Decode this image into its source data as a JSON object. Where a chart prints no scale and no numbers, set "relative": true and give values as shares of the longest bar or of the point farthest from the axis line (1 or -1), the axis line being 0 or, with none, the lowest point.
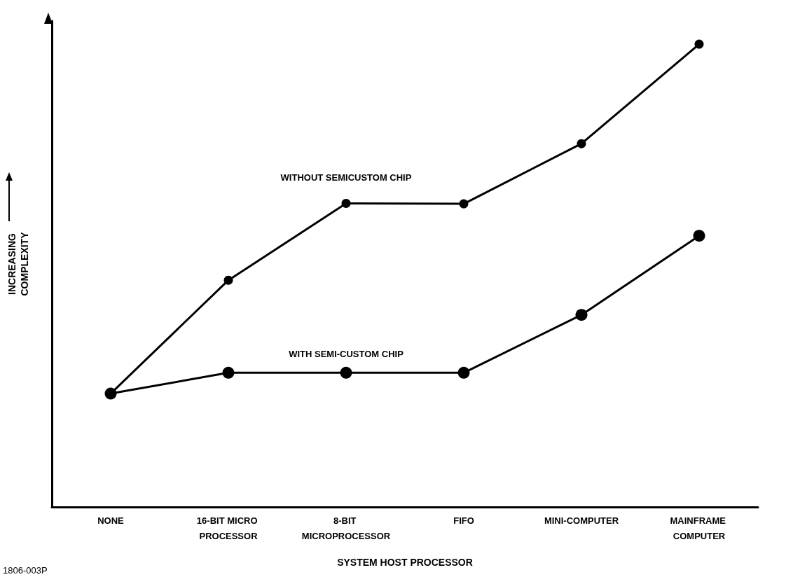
{
  "chart_data": {
    "type": "line",
    "relative": true,
    "xlabel": "SYSTEM HOST PROCESSOR",
    "ylabel": "INCREASING COMPLEXITY",
    "categories": [
      "NONE",
      "16-BIT MICRO PROCESSOR",
      "8-BIT MICROPROCESSOR",
      "FIFO",
      "MINI-COMPUTER",
      "MAINFRAME COMPUTER"
    ],
    "series": [
      {
        "name": "WITHOUT SEMICUSTOM CHIP",
        "color": "#000000",
        "values": [
          0.245,
          0.49,
          0.656,
          0.655,
          0.785,
          1.0
        ]
      },
      {
        "name": "WITH SEMI-CUSTOM CHIP",
        "color": "#000000",
        "values": [
          0.245,
          0.29,
          0.29,
          0.29,
          0.415,
          0.586
        ]
      }
    ],
    "marker": "circle",
    "line_style": "solid",
    "grid": false,
    "legend": false,
    "annotations": [
      "1806-003P"
    ]
  }
}
